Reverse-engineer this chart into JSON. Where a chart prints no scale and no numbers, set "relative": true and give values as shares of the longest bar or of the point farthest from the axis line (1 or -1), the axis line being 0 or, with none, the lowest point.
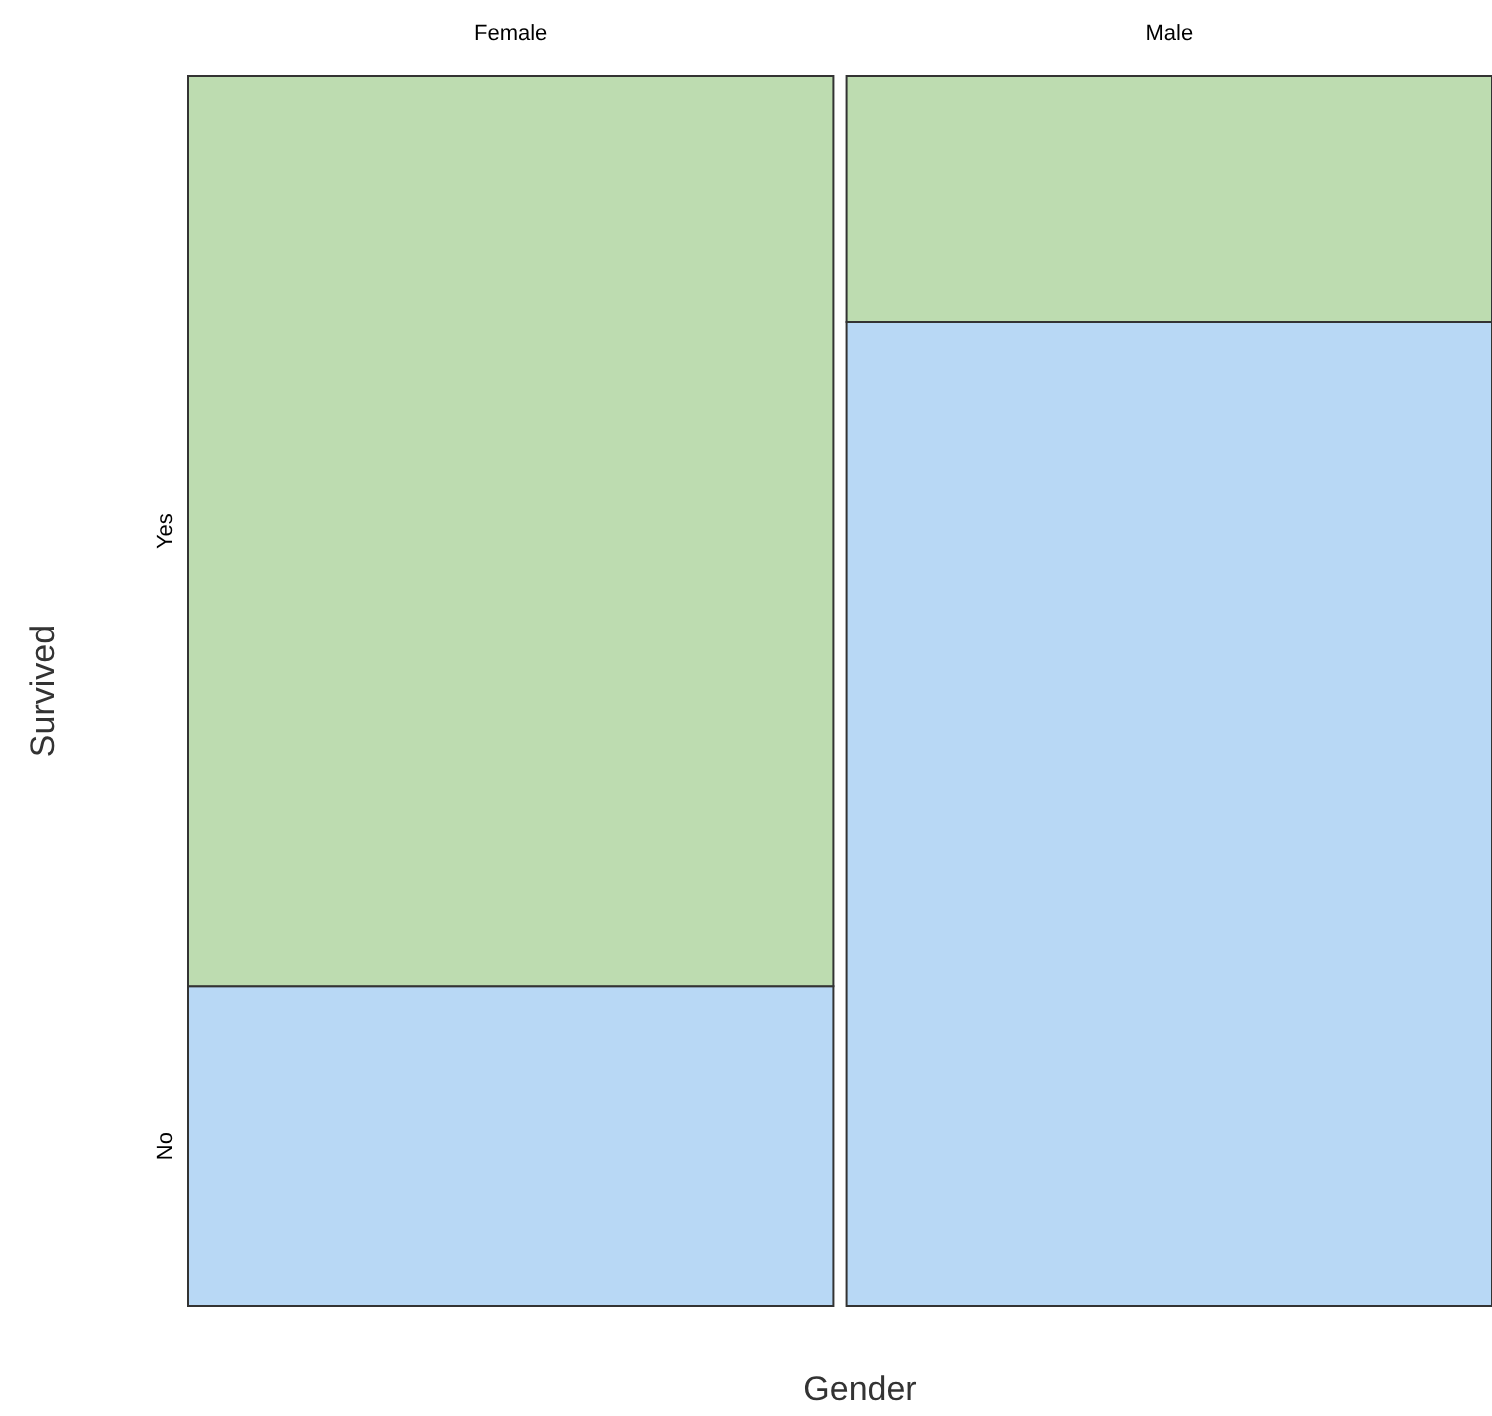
{
  "chart_data": {
    "type": "bar",
    "stacked": true,
    "relative": true,
    "xlabel": "Gender",
    "ylabel": "Survived",
    "categories": [
      "Female",
      "Male"
    ],
    "series": [
      {
        "name": "No",
        "color": "#b8d8f5",
        "values": [
          0.26,
          0.8
        ]
      },
      {
        "name": "Yes",
        "color": "#bddcb0",
        "values": [
          0.74,
          0.2
        ]
      }
    ]
  }
}
